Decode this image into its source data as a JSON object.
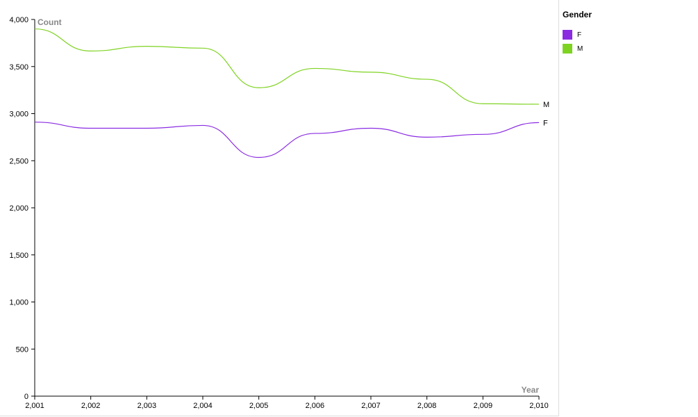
{
  "chart_data": {
    "type": "line",
    "xlabel": "Year",
    "ylabel": "Count",
    "x": [
      2001,
      2002,
      2003,
      2004,
      2005,
      2006,
      2007,
      2008,
      2009,
      2010
    ],
    "x_tick_labels": [
      "2,001",
      "2,002",
      "2,003",
      "2,004",
      "2,005",
      "2,006",
      "2,007",
      "2,008",
      "2,009",
      "2,010"
    ],
    "y_ticks": [
      0,
      500,
      1000,
      1500,
      2000,
      2500,
      3000,
      3500,
      4000
    ],
    "y_tick_labels": [
      "0",
      "500",
      "1,000",
      "1,500",
      "2,000",
      "2,500",
      "3,000",
      "3,500",
      "4,000"
    ],
    "xlim": [
      2001,
      2010
    ],
    "ylim": [
      0,
      4000
    ],
    "grid": false,
    "legend": {
      "title": "Gender",
      "placement": "right"
    },
    "series": [
      {
        "name": "F",
        "color": "#8a2be2",
        "values": [
          2910,
          2845,
          2845,
          2875,
          2535,
          2790,
          2845,
          2750,
          2780,
          2905
        ]
      },
      {
        "name": "M",
        "color": "#7ed321",
        "values": [
          3900,
          3665,
          3715,
          3695,
          3275,
          3480,
          3440,
          3365,
          3105,
          3100
        ]
      }
    ]
  }
}
